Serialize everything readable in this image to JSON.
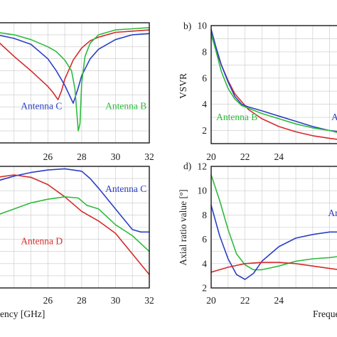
{
  "colors": {
    "antenna_b": "#2dbb3c",
    "antenna_c": "#2b3fc4",
    "antenna_d": "#d62a2a"
  },
  "chart_data": [
    {
      "panel": "a",
      "type": "line",
      "visible_labels": {},
      "xlim": [
        23,
        32
      ],
      "ylim": [
        0,
        10
      ],
      "x_ticks": [
        26,
        28,
        30,
        32
      ],
      "y_ticks": [],
      "grid": true,
      "annotations": [
        {
          "text": "Antenna C",
          "color_key": "antenna_c",
          "x": 24.4,
          "y": 2.8
        },
        {
          "text": "Antenna B",
          "color_key": "antenna_b",
          "x": 29.4,
          "y": 2.8
        }
      ],
      "series": [
        {
          "color_key": "antenna_d",
          "x": [
            23,
            24,
            25,
            26,
            26.3,
            26.5,
            26.6,
            26.8,
            27,
            27.5,
            28,
            28.5,
            29,
            30,
            31,
            32
          ],
          "y": [
            8.5,
            7.2,
            6.0,
            4.7,
            4.2,
            3.8,
            3.6,
            4.3,
            5.3,
            6.9,
            7.9,
            8.5,
            8.8,
            9.2,
            9.3,
            9.4
          ]
        },
        {
          "color_key": "antenna_c",
          "x": [
            23,
            24,
            25,
            26,
            26.5,
            27,
            27.3,
            27.5,
            27.8,
            28,
            28.5,
            29,
            30,
            31,
            32
          ],
          "y": [
            9.0,
            8.7,
            8.2,
            7.0,
            6.0,
            4.8,
            3.9,
            3.3,
            4.6,
            5.6,
            7.0,
            7.8,
            8.6,
            9.0,
            9.1
          ]
        },
        {
          "color_key": "antenna_b",
          "x": [
            23,
            24,
            25,
            26,
            26.5,
            27,
            27.4,
            27.6,
            27.8,
            27.9,
            28,
            28.2,
            28.5,
            29,
            30,
            31,
            32
          ],
          "y": [
            9.2,
            9.0,
            8.6,
            8.0,
            7.6,
            6.9,
            6.0,
            4.5,
            1.0,
            1.6,
            5.0,
            7.2,
            8.3,
            9.0,
            9.4,
            9.5,
            9.6
          ]
        }
      ]
    },
    {
      "panel": "b",
      "type": "line",
      "visible_labels": {
        "letter": "b)",
        "ylabel": "VSVR"
      },
      "xlim": [
        20,
        27.6
      ],
      "ylim": [
        1,
        10
      ],
      "x_ticks": [
        20,
        22,
        24
      ],
      "y_ticks": [
        2,
        4,
        6,
        8,
        10
      ],
      "grid": true,
      "annotations": [
        {
          "text": "Antenna B",
          "color_key": "antenna_b",
          "x": 20.3,
          "y": 2.8
        },
        {
          "text": "A",
          "color_key": "antenna_c",
          "x": 27.1,
          "y": 2.8
        }
      ],
      "series": [
        {
          "color_key": "antenna_d",
          "x": [
            20,
            20.3,
            20.6,
            21,
            21.4,
            21.8,
            22.2,
            23,
            24,
            25,
            26,
            27,
            27.6
          ],
          "y": [
            9.3,
            8.1,
            7.0,
            5.8,
            4.8,
            4.2,
            3.6,
            2.9,
            2.3,
            1.9,
            1.6,
            1.4,
            1.3
          ]
        },
        {
          "color_key": "antenna_c",
          "x": [
            20,
            20.3,
            20.6,
            21,
            21.4,
            21.8,
            22.2,
            23,
            24,
            25,
            26,
            27,
            27.6
          ],
          "y": [
            9.7,
            8.3,
            7.0,
            5.7,
            4.6,
            4.0,
            3.8,
            3.5,
            3.1,
            2.7,
            2.3,
            2.0,
            1.9
          ]
        },
        {
          "color_key": "antenna_b",
          "x": [
            20,
            20.3,
            20.6,
            21,
            21.4,
            21.8,
            22.2,
            23,
            24,
            25,
            26,
            27,
            27.6
          ],
          "y": [
            9.4,
            8.0,
            6.5,
            5.2,
            4.4,
            3.9,
            3.7,
            3.3,
            2.9,
            2.5,
            2.2,
            2.0,
            1.8
          ]
        }
      ]
    },
    {
      "panel": "c",
      "type": "line",
      "visible_labels": {
        "xlabel_partial": "ency [GHz]"
      },
      "xlim": [
        23,
        32
      ],
      "ylim": [
        0,
        10
      ],
      "x_ticks": [
        26,
        28,
        30,
        32
      ],
      "y_ticks": [],
      "grid": true,
      "annotations": [
        {
          "text": "Antenna C",
          "color_key": "antenna_c",
          "x": 29.4,
          "y": 7.9
        },
        {
          "text": "Antenna D",
          "color_key": "antenna_d",
          "x": 24.4,
          "y": 3.6
        }
      ],
      "series": [
        {
          "color_key": "antenna_c",
          "x": [
            23,
            24,
            25,
            26,
            27,
            28,
            28.5,
            29,
            30,
            31,
            31.5,
            32
          ],
          "y": [
            8.8,
            9.2,
            9.5,
            9.7,
            9.8,
            9.6,
            9.0,
            8.2,
            6.5,
            4.8,
            4.6,
            4.6
          ]
        },
        {
          "color_key": "antenna_d",
          "x": [
            23,
            24,
            25,
            26,
            27,
            28,
            29,
            30,
            31,
            32
          ],
          "y": [
            9.1,
            9.3,
            9.1,
            8.5,
            7.5,
            6.3,
            5.5,
            4.5,
            2.8,
            1.1
          ]
        },
        {
          "color_key": "antenna_b",
          "x": [
            23,
            24,
            25,
            26,
            27,
            27.8,
            28.3,
            29,
            30,
            31,
            32
          ],
          "y": [
            6.0,
            6.5,
            7.0,
            7.3,
            7.5,
            7.4,
            6.8,
            6.5,
            5.2,
            4.3,
            3.0
          ]
        }
      ]
    },
    {
      "panel": "d",
      "type": "line",
      "visible_labels": {
        "letter": "d)",
        "ylabel": "Axial ratio value [º]",
        "xlabel_partial": "Freque"
      },
      "xlim": [
        20,
        27.6
      ],
      "ylim": [
        2,
        12
      ],
      "x_ticks": [
        20,
        22,
        24
      ],
      "y_ticks": [
        2,
        4,
        6,
        8,
        10,
        12
      ],
      "grid": true,
      "annotations": [
        {
          "text": "An",
          "color_key": "antenna_c",
          "x": 26.9,
          "y": 7.9
        }
      ],
      "series": [
        {
          "color_key": "antenna_b",
          "x": [
            20,
            20.5,
            21,
            21.5,
            22,
            22.5,
            23,
            24,
            25,
            26,
            27,
            27.6
          ],
          "y": [
            11.3,
            9.2,
            6.8,
            4.8,
            3.9,
            3.5,
            3.5,
            3.8,
            4.2,
            4.4,
            4.5,
            4.6
          ]
        },
        {
          "color_key": "antenna_c",
          "x": [
            20,
            20.5,
            21,
            21.5,
            22,
            22.5,
            23,
            24,
            25,
            26,
            27,
            27.6
          ],
          "y": [
            8.8,
            6.3,
            4.4,
            3.1,
            2.7,
            3.2,
            4.2,
            5.4,
            6.1,
            6.4,
            6.6,
            6.6
          ]
        },
        {
          "color_key": "antenna_d",
          "x": [
            20,
            21,
            22,
            23,
            24,
            25,
            26,
            27,
            27.6
          ],
          "y": [
            3.3,
            3.7,
            4.0,
            4.1,
            4.1,
            4.0,
            3.8,
            3.6,
            3.5
          ]
        }
      ]
    }
  ]
}
